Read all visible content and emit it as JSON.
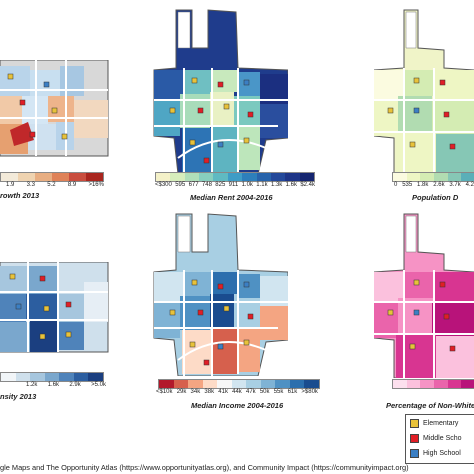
{
  "panels": [
    {
      "id": "growth",
      "title": "rowth 2013",
      "ticks": [
        "1.9",
        "3.3",
        "5.2",
        "8.9",
        ">16%"
      ],
      "colors": [
        "#f3ead9",
        "#efd3b0",
        "#e8ae82",
        "#df8258",
        "#c94d3e",
        "#a9251e"
      ]
    },
    {
      "id": "rent",
      "title": "Median Rent 2004-2016",
      "ticks": [
        "<$300",
        "595",
        "677",
        "748",
        "825",
        "911",
        "1.0k",
        "1.1k",
        "1.3k",
        "1.6k",
        "$2.4k"
      ],
      "colors": [
        "#f4f1c8",
        "#d7eebc",
        "#b0dfb9",
        "#87cfbe",
        "#5fbac2",
        "#3e9cc6",
        "#2d7fbb",
        "#2763ab",
        "#23489a",
        "#1d3487",
        "#152570"
      ]
    },
    {
      "id": "population",
      "title": "Population D",
      "ticks": [
        "0",
        "535",
        "1.8k",
        "2.6k",
        "3.7k",
        "4.2"
      ],
      "colors": [
        "#fbfbe0",
        "#eef6c4",
        "#d4ecb3",
        "#b1dcb1",
        "#86c7b5",
        "#5aafb8"
      ]
    },
    {
      "id": "density",
      "title": "nsity 2013",
      "ticks": [
        "1.2k",
        "1.6k",
        "2.9k",
        ">5.0k"
      ],
      "colors": [
        "#f1f5f8",
        "#cfe0ec",
        "#a6c6de",
        "#7aa7cd",
        "#4f83ba",
        "#2c5ea0",
        "#1b3f80"
      ]
    },
    {
      "id": "income",
      "title": "Median Income 2004-2016",
      "ticks": [
        "<$10k",
        "29k",
        "34k",
        "38k",
        "41k",
        "44k",
        "47k",
        "50k",
        "55k",
        "61k",
        ">$80k"
      ],
      "colors": [
        "#b2182b",
        "#d6604d",
        "#f4a582",
        "#fddbc7",
        "#f7f7f7",
        "#d1e5f0",
        "#a8cfe3",
        "#7fb3d5",
        "#4f91c3",
        "#2c6fae",
        "#1a4c8f"
      ]
    },
    {
      "id": "nonwhite",
      "title": "Percentage of Non-White",
      "ticks": [],
      "colors": [
        "#fde0ee",
        "#fbc1dd",
        "#f693c5",
        "#ea64ab",
        "#d83591",
        "#b8137a"
      ]
    }
  ],
  "schools": [
    {
      "label": "Elementary",
      "color": "#e8c23a"
    },
    {
      "label": "Middle Scho",
      "color": "#e01e26"
    },
    {
      "label": "High School",
      "color": "#3b7fc4"
    }
  ],
  "credit": "gle Maps and The Opportunity Atlas (https://www.opportunityatlas.org), and Community Impact (https://communityimpact.org)"
}
